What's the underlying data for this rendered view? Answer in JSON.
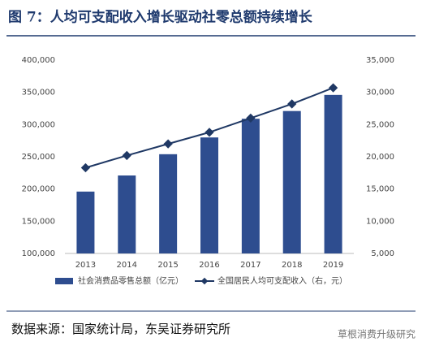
{
  "chart_data": {
    "type": "bar-line",
    "title": "图 7：人均可支配收入增长驱动社零总额持续增长",
    "categories": [
      "2013",
      "2014",
      "2015",
      "2016",
      "2017",
      "2018",
      "2019"
    ],
    "series": [
      {
        "name": "社会消费品零售总额（亿元）",
        "type": "bar",
        "color": "#2e4d8f",
        "values": [
          196000,
          221000,
          254000,
          280000,
          309000,
          321000,
          346000
        ]
      },
      {
        "name": "全国居民人均可支配收入（右，元）",
        "type": "line",
        "axis": "y2",
        "color": "#1f3864",
        "values": [
          18300,
          20200,
          22000,
          23800,
          26000,
          28200,
          30700
        ]
      }
    ],
    "ylim": [
      100000,
      400000
    ],
    "yticks": [
      {
        "value": 100000,
        "label": "100,000"
      },
      {
        "value": 150000,
        "label": "150,000"
      },
      {
        "value": 200000,
        "label": "200,000"
      },
      {
        "value": 250000,
        "label": "250,000"
      },
      {
        "value": 300000,
        "label": "300,000"
      },
      {
        "value": 350000,
        "label": "350,000"
      },
      {
        "value": 400000,
        "label": "400,000"
      }
    ],
    "y2lim": [
      5000,
      35000
    ],
    "y2ticks": [
      {
        "value": 5000,
        "label": "5,000"
      },
      {
        "value": 10000,
        "label": "10,000"
      },
      {
        "value": 15000,
        "label": "15,000"
      },
      {
        "value": 20000,
        "label": "20,000"
      },
      {
        "value": 25000,
        "label": "25,000"
      },
      {
        "value": 30000,
        "label": "30,000"
      },
      {
        "value": 35000,
        "label": "35,000"
      }
    ],
    "source": "数据来源：国家统计局，东吴证券研究所",
    "watermark": "草根消费升级研究"
  }
}
